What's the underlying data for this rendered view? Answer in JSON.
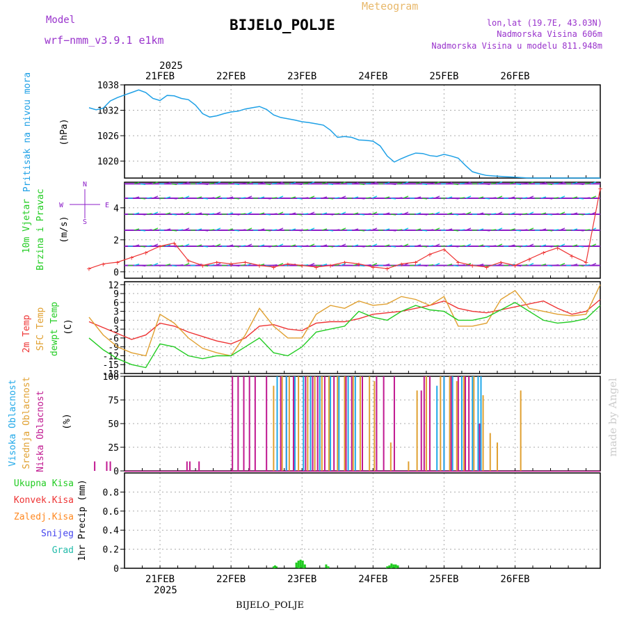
{
  "header": {
    "model_label": "Model",
    "model_name": "wrf−nmm_v3.9.1  e1km",
    "title": "BIJELO_POLJE",
    "subtitle": "Meteogram",
    "coords": "lon,lat (19.7E, 43.03N)",
    "elevation": "Nadmorska Visina 606m",
    "model_elevation": "Nadmorska Visina u modelu 811.948m"
  },
  "colors": {
    "pressure": "#1ea0e6",
    "wind_green": "#22cc22",
    "wind_cyan": "#00c8e6",
    "wind_purple": "#8c1ec8",
    "t2m": "#ee3333",
    "sfc": "#e0a030",
    "dewpt": "#22cc22",
    "cloud_high": "#20a8e8",
    "cloud_mid": "#e0a030",
    "cloud_low": "#c01890",
    "precip": "#22cc22",
    "conv": "#ee3333",
    "frz": "#ff8820",
    "snow": "#4444ee",
    "graupel": "#22bbaa"
  },
  "footer": {
    "station": "BIJELO_POLJE",
    "watermark": "made by Angel"
  },
  "chart_data": [
    {
      "id": "pressure",
      "type": "line",
      "ylabel": [
        "Pritisak na nivou mora",
        "(hPa)"
      ],
      "ylim": [
        1016,
        1038
      ],
      "yticks": [
        1020,
        1026,
        1032,
        1038
      ],
      "x_top_year": "2025",
      "x_top_labels": [
        "21FEB",
        "22FEB",
        "23FEB",
        "24FEB",
        "25FEB",
        "26FEB"
      ],
      "x_points": [
        0,
        0.1,
        0.2,
        0.3,
        0.4,
        0.5,
        0.6,
        0.7,
        0.8,
        0.9,
        1.0,
        1.1,
        1.2,
        1.3,
        1.4,
        1.5,
        1.6,
        1.7,
        1.8,
        1.9,
        2.0,
        2.1,
        2.2,
        2.3,
        2.4,
        2.5,
        2.6,
        2.7,
        2.8,
        2.9,
        3.0,
        3.1,
        3.2,
        3.3,
        3.4,
        3.5,
        3.6,
        3.7,
        3.8,
        3.9,
        4.0,
        4.1,
        4.2,
        4.3,
        4.4,
        4.5,
        4.6,
        4.7,
        4.8,
        4.9,
        5.0,
        5.1,
        5.2,
        5.3,
        5.4,
        5.5,
        5.6,
        5.7,
        5.8,
        5.9,
        6.0,
        6.1,
        6.2,
        6.3,
        6.4,
        6.5,
        6.6,
        6.7,
        6.8,
        6.9,
        7.0,
        7.1,
        7.2
      ],
      "values": [
        1032.6,
        1032.1,
        1032.5,
        1034.2,
        1035.0,
        1035.6,
        1036.2,
        1036.8,
        1036.2,
        1034.8,
        1034.3,
        1035.5,
        1035.4,
        1034.8,
        1034.5,
        1033.2,
        1031.2,
        1030.4,
        1030.7,
        1031.2,
        1031.6,
        1031.8,
        1032.3,
        1032.6,
        1032.9,
        1032.2,
        1030.9,
        1030.3,
        1030.0,
        1029.7,
        1029.3,
        1029.1,
        1028.8,
        1028.5,
        1027.3,
        1025.6,
        1025.8,
        1025.6,
        1025.0,
        1024.9,
        1024.7,
        1023.6,
        1021.2,
        1019.8,
        1020.6,
        1021.3,
        1021.9,
        1021.8,
        1021.3,
        1021.1,
        1021.6,
        1021.2,
        1020.7,
        1019.0,
        1017.5,
        1017.0,
        1016.6,
        1016.5,
        1016.4,
        1016.3,
        1016.2,
        1016.1,
        1016.0,
        1016.0,
        1016.0,
        1016.0,
        1016.0,
        1016.0,
        1016.0,
        1016.0,
        1016.0,
        1016.0,
        1016.0
      ]
    },
    {
      "id": "wind",
      "type": "line",
      "ylabel": [
        "10m Vjetar",
        "Brzina i Pravac",
        "(m/s)"
      ],
      "compass": [
        "N",
        "E",
        "S",
        "W"
      ],
      "ylim": [
        -0.4,
        5.6
      ],
      "yticks": [
        0,
        2,
        4
      ],
      "barb_rows": [
        0.4,
        1.6,
        2.6,
        3.6,
        4.6,
        5.5
      ],
      "x_points": [
        0,
        0.2,
        0.4,
        0.6,
        0.8,
        1.0,
        1.2,
        1.4,
        1.6,
        1.8,
        2.0,
        2.2,
        2.4,
        2.6,
        2.8,
        3.0,
        3.2,
        3.4,
        3.6,
        3.8,
        4.0,
        4.2,
        4.4,
        4.6,
        4.8,
        5.0,
        5.2,
        5.4,
        5.6,
        5.8,
        6.0,
        6.2,
        6.4,
        6.6,
        6.8,
        7.0,
        7.2
      ],
      "values": [
        0.2,
        0.5,
        0.6,
        0.9,
        1.2,
        1.6,
        1.8,
        0.7,
        0.4,
        0.6,
        0.5,
        0.6,
        0.4,
        0.3,
        0.5,
        0.4,
        0.3,
        0.4,
        0.6,
        0.5,
        0.3,
        0.2,
        0.5,
        0.6,
        1.1,
        1.4,
        0.6,
        0.4,
        0.3,
        0.6,
        0.4,
        0.8,
        1.2,
        1.5,
        1.0,
        0.6,
        5.2
      ]
    },
    {
      "id": "temperature",
      "type": "line",
      "ylabel": [
        "2m Temp",
        "SFC Temp",
        "dewpt Temp",
        "(C)"
      ],
      "ylim": [
        -18,
        13
      ],
      "yticks": [
        12,
        9,
        6,
        3,
        0,
        -3,
        -6,
        -9,
        -12,
        -15,
        -18
      ],
      "x_points": [
        0,
        0.2,
        0.4,
        0.6,
        0.8,
        1.0,
        1.2,
        1.4,
        1.6,
        1.8,
        2.0,
        2.2,
        2.4,
        2.6,
        2.8,
        3.0,
        3.2,
        3.4,
        3.6,
        3.8,
        4.0,
        4.2,
        4.4,
        4.6,
        4.8,
        5.0,
        5.2,
        5.4,
        5.6,
        5.8,
        6.0,
        6.2,
        6.4,
        6.6,
        6.8,
        7.0,
        7.2
      ],
      "series": [
        {
          "name": "2m Temp",
          "values": [
            -0.5,
            -2.5,
            -4.5,
            -6.5,
            -5.0,
            -1.0,
            -2.0,
            -4.0,
            -5.5,
            -7.0,
            -8.0,
            -6.0,
            -2.0,
            -1.5,
            -3.0,
            -3.5,
            -1.0,
            -0.5,
            -0.5,
            0.5,
            2.0,
            2.5,
            3.0,
            4.0,
            5.0,
            6.5,
            4.0,
            3.0,
            2.5,
            3.5,
            4.5,
            5.5,
            6.5,
            4.0,
            2.0,
            3.0,
            7.0
          ]
        },
        {
          "name": "SFC Temp",
          "values": [
            1.0,
            -5.0,
            -9.0,
            -11.0,
            -12.0,
            2.0,
            -1.0,
            -6.0,
            -9.5,
            -11.0,
            -12.0,
            -5.0,
            4.0,
            -2.0,
            -6.0,
            -6.0,
            2.0,
            5.0,
            4.0,
            6.5,
            5.0,
            5.5,
            8.0,
            7.0,
            5.0,
            8.0,
            -2.0,
            -2.0,
            -1.0,
            7.0,
            10.0,
            4.0,
            3.0,
            2.0,
            1.5,
            2.0,
            12.0
          ]
        },
        {
          "name": "dewpt Temp",
          "values": [
            -6.0,
            -10.0,
            -13.0,
            -15.0,
            -16.0,
            -8.0,
            -9.0,
            -12.0,
            -13.0,
            -12.0,
            -12.0,
            -9.0,
            -6.0,
            -11.0,
            -12.0,
            -9.0,
            -4.0,
            -3.0,
            -2.0,
            3.0,
            1.0,
            0.0,
            3.0,
            5.0,
            3.5,
            3.0,
            0.0,
            0.0,
            1.0,
            3.5,
            6.0,
            3.0,
            0.0,
            -1.0,
            -0.5,
            0.5,
            5.0
          ]
        }
      ]
    },
    {
      "id": "clouds",
      "type": "bar",
      "ylabel": [
        "Visoka Oblacnost",
        "Srednja Oblacnost",
        "Niska Oblacnost",
        "(%)"
      ],
      "ylim": [
        0,
        100
      ],
      "yticks": [
        0,
        25,
        50,
        75,
        100
      ],
      "series": [
        {
          "name": "Niska Oblacnost",
          "x": [
            0.08,
            0.25,
            0.3,
            1.38,
            1.42,
            1.55,
            2.02,
            2.1,
            2.18,
            2.26,
            2.34,
            2.5,
            2.7,
            2.78,
            2.88,
            3.05,
            3.15,
            3.22,
            3.32,
            3.45,
            3.62,
            3.7,
            3.85,
            4.05,
            4.15,
            4.3,
            4.68,
            4.72,
            4.8,
            5.0,
            5.1,
            5.2,
            5.3,
            5.35,
            5.5
          ],
          "values": [
            10,
            10,
            10,
            10,
            10,
            10,
            100,
            100,
            100,
            100,
            100,
            100,
            100,
            100,
            100,
            100,
            100,
            100,
            100,
            100,
            100,
            100,
            100,
            100,
            100,
            100,
            85,
            100,
            100,
            100,
            100,
            100,
            100,
            100,
            50
          ]
        },
        {
          "name": "Srednja Oblacnost",
          "x": [
            2.6,
            2.72,
            2.82,
            2.95,
            3.08,
            3.18,
            3.28,
            3.38,
            3.5,
            3.6,
            3.72,
            3.82,
            3.95,
            4.02,
            4.25,
            4.5,
            4.62,
            4.75,
            4.95,
            5.08,
            5.18,
            5.28,
            5.42,
            5.55,
            5.65,
            5.75,
            6.08
          ],
          "values": [
            90,
            100,
            100,
            100,
            100,
            100,
            100,
            100,
            100,
            100,
            100,
            100,
            100,
            95,
            30,
            10,
            85,
            100,
            100,
            100,
            95,
            100,
            100,
            80,
            40,
            30,
            85
          ]
        },
        {
          "name": "Visoka Oblacnost",
          "x": [
            2.65,
            2.78,
            2.9,
            3.02,
            3.12,
            3.25,
            3.4,
            3.52,
            3.65,
            3.75,
            4.9,
            5.0,
            5.12,
            5.25,
            5.4,
            5.48,
            5.52
          ],
          "values": [
            100,
            100,
            100,
            100,
            100,
            100,
            100,
            100,
            100,
            100,
            90,
            100,
            100,
            100,
            100,
            100,
            100
          ]
        }
      ]
    },
    {
      "id": "precip",
      "type": "bar",
      "ylabel": [
        "1hr Precip (mm)"
      ],
      "legend": [
        "Ukupna Kisa",
        "Konvek.Kisa",
        "Zaledj.Kisa",
        "Snijeg",
        "Grad"
      ],
      "ylim": [
        0,
        1.0
      ],
      "yticks": [
        0,
        0.2,
        0.4,
        0.6,
        0.8
      ],
      "x_bottom_labels": [
        "21FEB",
        "22FEB",
        "23FEB",
        "24FEB",
        "25FEB",
        "26FEB"
      ],
      "x_bottom_year": "2025",
      "x": [
        2.6,
        2.62,
        2.64,
        2.92,
        2.95,
        2.98,
        3.01,
        3.04,
        3.34,
        3.37,
        4.2,
        4.23,
        4.26,
        4.29,
        4.32,
        4.35
      ],
      "values": [
        0.02,
        0.03,
        0.02,
        0.06,
        0.08,
        0.09,
        0.08,
        0.04,
        0.04,
        0.02,
        0.02,
        0.03,
        0.05,
        0.04,
        0.04,
        0.03
      ]
    }
  ]
}
